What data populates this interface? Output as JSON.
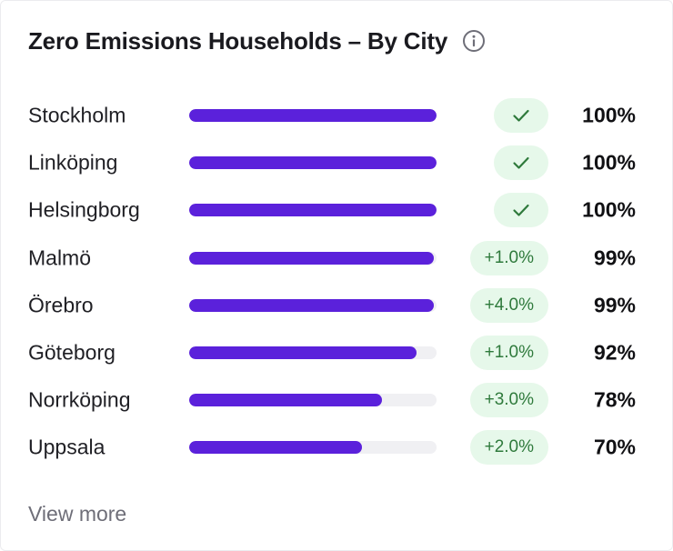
{
  "card": {
    "title": "Zero Emissions Households – By City",
    "info_icon": "info-icon",
    "view_more_label": "View more"
  },
  "colors": {
    "bar_fill": "#5b21db",
    "bar_track": "#f0f0f3",
    "badge_bg": "#e6f8ea",
    "badge_text": "#2f7a3c"
  },
  "cities": [
    {
      "name": "Stockholm",
      "percent_label": "100%",
      "percent": 100,
      "change": "",
      "complete": true,
      "badge_icon": "check-icon"
    },
    {
      "name": "Linköping",
      "percent_label": "100%",
      "percent": 100,
      "change": "",
      "complete": true,
      "badge_icon": "check-icon"
    },
    {
      "name": "Helsingborg",
      "percent_label": "100%",
      "percent": 100,
      "change": "",
      "complete": true,
      "badge_icon": "check-icon"
    },
    {
      "name": "Malmö",
      "percent_label": "99%",
      "percent": 99,
      "change": "+1.0%",
      "complete": false
    },
    {
      "name": "Örebro",
      "percent_label": "99%",
      "percent": 99,
      "change": "+4.0%",
      "complete": false
    },
    {
      "name": "Göteborg",
      "percent_label": "92%",
      "percent": 92,
      "change": "+1.0%",
      "complete": false
    },
    {
      "name": "Norrköping",
      "percent_label": "78%",
      "percent": 78,
      "change": "+3.0%",
      "complete": false
    },
    {
      "name": "Uppsala",
      "percent_label": "70%",
      "percent": 70,
      "change": "+2.0%",
      "complete": false
    }
  ]
}
